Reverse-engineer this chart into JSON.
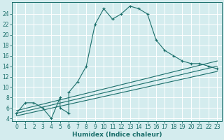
{
  "bg_color": "#d4ecee",
  "grid_color": "#ffffff",
  "line_color": "#1a6e6a",
  "xlabel": "Humidex (Indice chaleur)",
  "xlim": [
    -0.5,
    23.5
  ],
  "ylim": [
    3.5,
    26.2
  ],
  "xticks": [
    0,
    1,
    2,
    3,
    4,
    5,
    6,
    7,
    8,
    9,
    10,
    11,
    12,
    13,
    14,
    15,
    16,
    17,
    18,
    19,
    20,
    21,
    22,
    23
  ],
  "yticks": [
    4,
    6,
    8,
    10,
    12,
    14,
    16,
    18,
    20,
    22,
    24
  ],
  "main_x": [
    0,
    1,
    2,
    3,
    4,
    5,
    5,
    6,
    6,
    7,
    8,
    9,
    10,
    11,
    12,
    13,
    14,
    15,
    16,
    17,
    18,
    19,
    20,
    21,
    22,
    23
  ],
  "main_y": [
    5,
    7,
    7,
    6,
    4,
    8,
    6,
    5,
    9,
    11,
    14,
    22,
    25,
    23,
    24,
    25.5,
    25,
    24,
    19,
    17,
    16,
    15,
    14.5,
    14.5,
    14,
    13.5
  ],
  "line1_x": [
    0,
    23
  ],
  "line1_y": [
    5.5,
    15.0
  ],
  "line2_x": [
    0,
    23
  ],
  "line2_y": [
    5.0,
    14.0
  ],
  "line3_x": [
    0,
    23
  ],
  "line3_y": [
    4.5,
    13.0
  ],
  "xlabel_fontsize": 6.5,
  "tick_fontsize": 5.5
}
